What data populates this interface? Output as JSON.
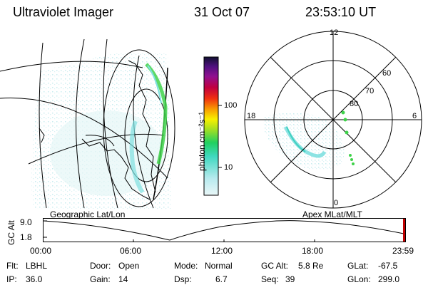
{
  "header": {
    "instrument": "Ultraviolet Imager",
    "date": "31 Oct 07",
    "time": "23:53:10 UT"
  },
  "colorbar": {
    "unit_label": "photon cm⁻²s⁻¹",
    "ticks": [
      "100",
      "10"
    ]
  },
  "polar_plot": {
    "mlt_labels": {
      "top": "12",
      "left": "18",
      "right": "6",
      "bottom": "0"
    },
    "lat_labels": [
      "60",
      "70",
      "80"
    ]
  },
  "panels": {
    "left_caption": "Geographic Lat/Lon",
    "right_caption": "Apex MLat/MLT"
  },
  "timeline": {
    "axis_label": "GC Alt",
    "y_ticks": [
      "9.0",
      "1.8"
    ],
    "x_ticks": [
      "00:00",
      "06:00",
      "12:00",
      "18:00",
      "23:59"
    ]
  },
  "info": {
    "row1": {
      "flt_label": "Flt:",
      "flt_value": "LBHL",
      "door_label": "Door:",
      "door_value": "Open",
      "mode_label": "Mode:",
      "mode_value": "Normal",
      "gcalt_label": "GC Alt:",
      "gcalt_value": "5.8 Re",
      "glat_label": "GLat:",
      "glat_value": "-67.5"
    },
    "row2": {
      "ip_label": "IP:",
      "ip_value": "36.0",
      "gain_label": "Gain:",
      "gain_value": "14",
      "dsp_label": "Dsp:",
      "dsp_value": "6.7",
      "seq_label": "Seq:",
      "seq_value": "39",
      "glon_label": "GLon:",
      "glon_value": "299.0"
    }
  },
  "colors": {
    "aurora_green": "#3fd24a",
    "aurora_cyan": "#7fe0e0",
    "speckle": "#b8e8ec",
    "cursor": "#c00000"
  }
}
